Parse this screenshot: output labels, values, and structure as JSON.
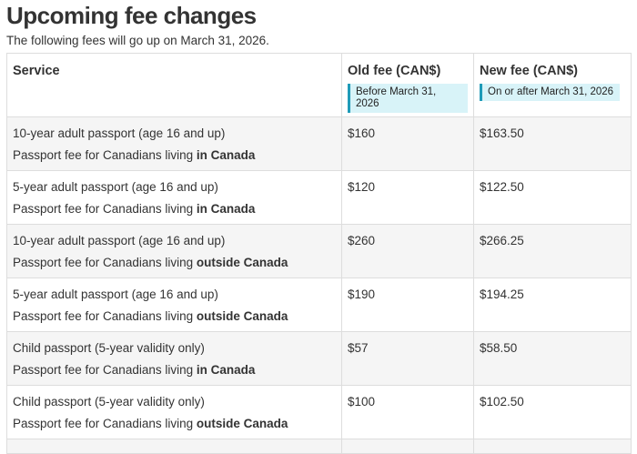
{
  "page": {
    "title": "Upcoming fee changes",
    "intro": "The following fees will go up on March 31, 2026."
  },
  "table": {
    "columns": [
      {
        "label": "Service"
      },
      {
        "label": "Old fee (CAN$)",
        "sublabel": "Before March 31, 2026"
      },
      {
        "label": "New fee (CAN$)",
        "sublabel": "On or after March 31, 2026"
      }
    ],
    "rows": [
      {
        "service": "10-year adult passport (age 16 and up)",
        "description": "Passport fee for Canadians living",
        "description_bold": "in Canada",
        "old_fee": "$160",
        "new_fee": "$163.50"
      },
      {
        "service": "5-year adult passport (age 16 and up)",
        "description": "Passport fee for Canadians living",
        "description_bold": "in Canada",
        "old_fee": "$120",
        "new_fee": "$122.50"
      },
      {
        "service": "10-year adult passport (age 16 and up)",
        "description": "Passport fee for Canadians living",
        "description_bold": "outside Canada",
        "old_fee": "$260",
        "new_fee": "$266.25"
      },
      {
        "service": "5-year adult passport (age 16 and up)",
        "description": "Passport fee for Canadians living",
        "description_bold": "outside Canada",
        "old_fee": "$190",
        "new_fee": "$194.25"
      },
      {
        "service": "Child passport (5-year validity only)",
        "description": "Passport fee for Canadians living",
        "description_bold": "in Canada",
        "old_fee": "$57",
        "new_fee": "$58.50"
      },
      {
        "service": "Child passport (5-year validity only)",
        "description": "Passport fee for Canadians living",
        "description_bold": "outside Canada",
        "old_fee": "$100",
        "new_fee": "$102.50"
      }
    ]
  },
  "colors": {
    "accent_bar": "#1f9bb8",
    "label_bg": "#d8f3f8",
    "stripe_bg": "#f5f5f5",
    "border": "#dddddd",
    "text": "#333333",
    "page_bg": "#ffffff"
  }
}
